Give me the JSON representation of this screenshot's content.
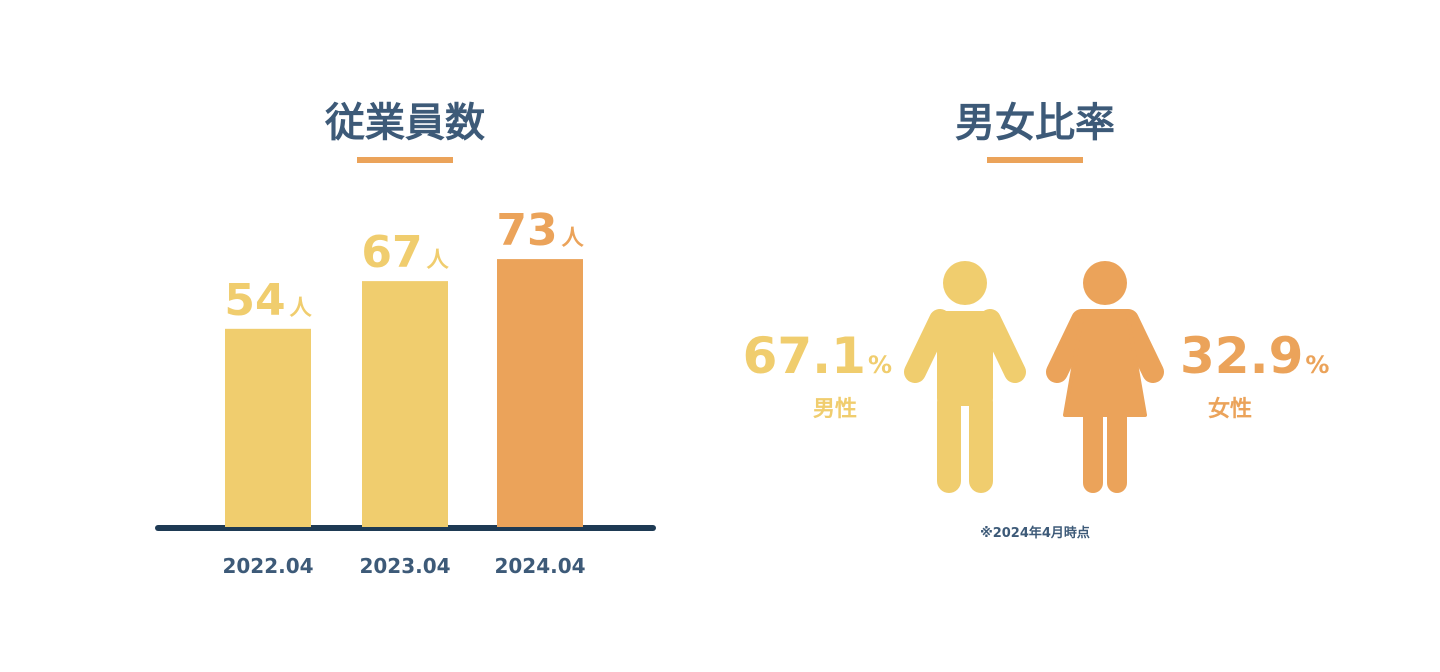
{
  "chart_data": [
    {
      "type": "bar",
      "title": "従業員数",
      "categories": [
        "2022.04",
        "2023.04",
        "2024.04"
      ],
      "values": [
        54,
        67,
        73
      ],
      "unit": "人",
      "colors": [
        "#f0cd6e",
        "#f0cd6e",
        "#eba35a"
      ]
    },
    {
      "type": "ratio",
      "title": "男女比率",
      "categories": [
        "男性",
        "女性"
      ],
      "values": [
        67.1,
        32.9
      ],
      "unit": "%",
      "colors": [
        "#f0cd6e",
        "#eba35a"
      ],
      "note": "※2024年4月時点"
    }
  ]
}
